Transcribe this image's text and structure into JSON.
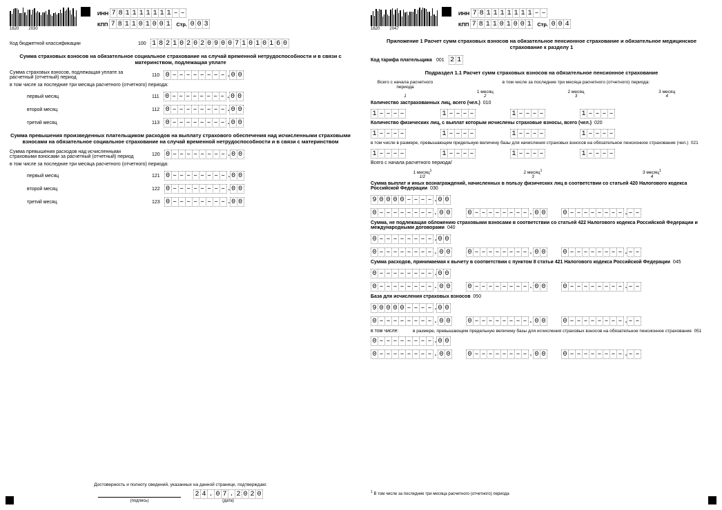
{
  "common": {
    "inn_label": "ИНН",
    "kpp_label": "КПП",
    "str_label": "Стр.",
    "inn": [
      "7",
      "8",
      "1",
      "1",
      "1",
      "1",
      "1",
      "1",
      "1",
      "–",
      "–"
    ],
    "kpp": [
      "7",
      "8",
      "1",
      "1",
      "0",
      "1",
      "0",
      "0",
      "1"
    ]
  },
  "left": {
    "bc_nums": [
      "1620",
      "2030"
    ],
    "str": [
      "0",
      "0",
      "3"
    ],
    "kbk_label": "Код бюджетной классификации",
    "kbk_code": "100",
    "kbk": [
      "1",
      "8",
      "2",
      "1",
      "0",
      "2",
      "0",
      "2",
      "0",
      "9",
      "0",
      "0",
      "7",
      "1",
      "0",
      "1",
      "0",
      "1",
      "6",
      "0"
    ],
    "title1": "Сумма страховых взносов на обязательное социальное страхование на случай временной нетрудоспособности и в связи с материнством, подлежащая уплате",
    "r110_txt": "Сумма страховых взносов, подлежащая уплате за расчетный (отчетный) период",
    "note3m": "в том числе за последние три месяца расчетного (отчетного) периода:",
    "m1": "первый месяц",
    "m2": "второй месяц",
    "m3": "третий месяц",
    "c110": "110",
    "c111": "111",
    "c112": "112",
    "c113": "113",
    "title2": "Сумма превышения произведенных плательщиком расходов на выплату страхового обеспечения над исчисленными страховыми взносами на обязательное социальное страхование на случай временной нетрудоспособности и в связи с материнством",
    "r120_txt": "Сумма превышения расходов над исчисленными страховыми взносами за расчетный (отчетный) период",
    "c120": "120",
    "c121": "121",
    "c122": "122",
    "c123": "123",
    "foot_txt": "Достоверность и полноту сведений, указанных на данной странице, подтверждаю:",
    "sign_lbl": "(подпись)",
    "date_lbl": "(дата)",
    "date": [
      "2",
      "4",
      ".",
      "0",
      "7",
      ".",
      "2",
      "0",
      "2",
      "0"
    ]
  },
  "right": {
    "bc_nums": [
      "1620",
      "2047"
    ],
    "str": [
      "0",
      "0",
      "4"
    ],
    "title": "Приложение 1 Расчет сумм страховых взносов на обязательное пенсионное страхование и обязательное медицинское страхование к разделу 1",
    "tarif_lbl": "Код тарифа плательщика",
    "tarif_code": "001",
    "tarif": [
      "2",
      "1"
    ],
    "sub11": "Подраздел 1.1 Расчет сумм страховых взносов на обязательное пенсионное страхование",
    "h_vsego": "Всего с начала расчетного периода",
    "h_3m": "в том числе за последние три месяца расчетного (отчетного) периода:",
    "h_m1": "1 месяц",
    "h_m2": "2 месяц",
    "h_m3": "3 месяц",
    "n1": "1",
    "n2": "2",
    "n3": "3",
    "n4": "4",
    "r010": "Количество застрахованных лиц, всего (чел.)",
    "c010": "010",
    "r020": "Количество физических лиц, с выплат которым исчислены страховые взносы, всего (чел.)",
    "c020": "020",
    "r021": "в том числе в размере, превышающем предельную величину базы для начисления страховых взносов на обязательное пенсионное страхование (чел.)",
    "c021": "021",
    "vsego_lbl": "Всего с начала расчетного периода/",
    "m1s": "1 месяц",
    "m2s": "2 месяц",
    "m3s": "3 месяц",
    "sup1": "1",
    "n12": "1/2",
    "r030": "Сумма выплат и иных вознаграждений, начисленных в пользу физических лиц в соответствии со статьей 420 Налогового кодекса Российской Федерации",
    "c030": "030",
    "r040": "Сумма, не подлежащая обложению страховыми взносами в соответствии со статьей 422 Налогового кодекса Российской Федерации и международными договорами",
    "c040": "040",
    "r045": "Сумма расходов, принимаемая к вычету в соответствии с пунктом 8 статьи 421 Налогового кодекса Российской Федерации",
    "c045": "045",
    "r050": "База для исчисления страховых взносов",
    "c050": "050",
    "vtom": "в том числе:",
    "r051": "в размере, превышающем предельную величину базы для исчисления страховых взносов на обязательное пенсионное страхование",
    "c051": "051",
    "footnote": "В том числе за последние три месяца расчетного (отчетного) периода"
  },
  "amounts": {
    "zero_int_9": [
      "0",
      "–",
      "–",
      "–",
      "–",
      "–",
      "–",
      "–",
      "–"
    ],
    "zero_dec": [
      "0",
      "0"
    ],
    "nine_int": [
      "9",
      "0",
      "0",
      "0",
      "0",
      "–",
      "–",
      "–",
      "–"
    ],
    "dash_dec": [
      "–",
      "–"
    ],
    "count1": [
      "1",
      "–",
      "–",
      "–",
      "–"
    ]
  }
}
